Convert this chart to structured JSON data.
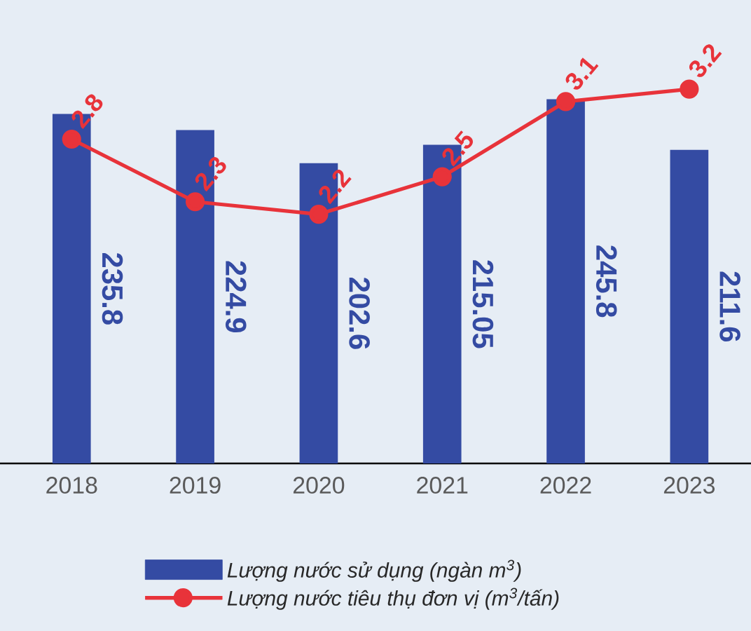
{
  "chart_data": {
    "type": "bar",
    "categories": [
      "2018",
      "2019",
      "2020",
      "2021",
      "2022",
      "2023"
    ],
    "series": [
      {
        "name": "Lượng nước sử dụng (ngàn m$^{3}$)",
        "color": "#344ba3",
        "values": [
          235.8,
          224.9,
          202.6,
          215.05,
          245.8,
          211.6
        ]
      },
      {
        "name": "Lượng nước tiêu thụ đơn vị (m$^{3}$/tấn)",
        "type": "line",
        "axis": "y2",
        "color": "#e8333a",
        "marker": "circle",
        "values": [
          2.8,
          2.3,
          2.2,
          2.5,
          3.1,
          3.2
        ]
      }
    ],
    "data_labels": true,
    "legend": "bottom",
    "tick_labels": "x",
    "grid": false
  }
}
